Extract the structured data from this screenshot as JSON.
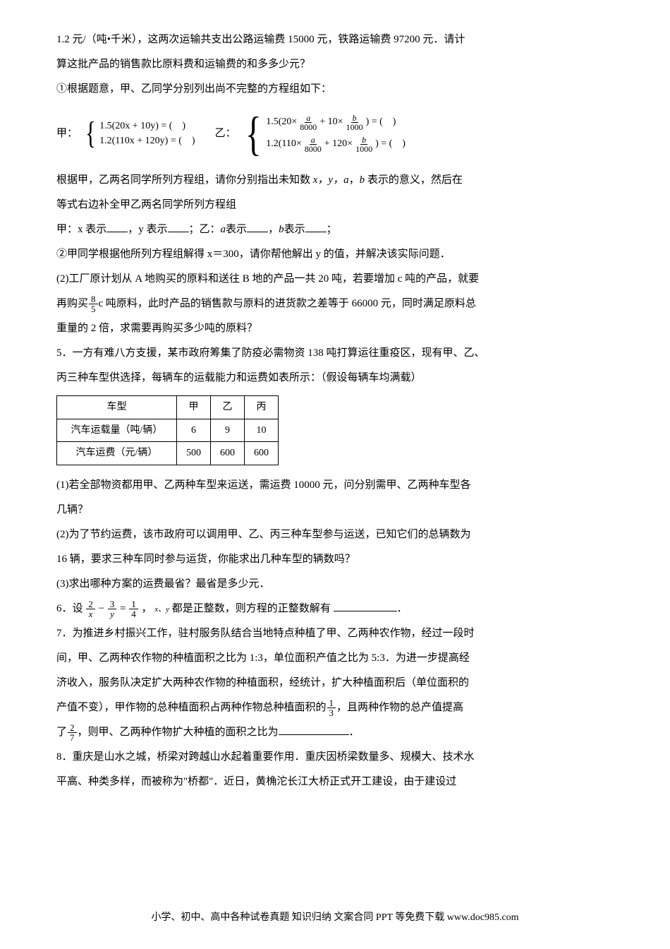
{
  "intro_line1": "1.2 元/（吨•千米），这两次运输共支出公路运输费 15000 元，铁路运输费 97200 元．请计",
  "intro_line2": "算这批产品的销售款比原料费和运输费的和多多少元？",
  "step1": "①根据题意，甲、乙同学分别列出尚不完整的方程组如下：",
  "jia_label": "甲：",
  "yi_label": "乙：",
  "jia_sys_l1": "1.5(20x + 10y) = (　)",
  "jia_sys_l2": "1.2(110x + 120y) = (　)",
  "yi_row1_pre": "1.5(20×",
  "yi_row1_mid": " + 10×",
  "yi_row1_post": ") = (　)",
  "yi_row2_pre": "1.2(110×",
  "yi_row2_mid": " + 120×",
  "yi_row2_post": ") = (　)",
  "frac_a": "a",
  "frac_b": "b",
  "den_8000": "8000",
  "den_1000": "1000",
  "after_eq_l1_a": "根据甲，乙两名同学所列方程组，请你分别指出未知数 ",
  "xy_text": "x，y，",
  "a_text": "a",
  "comma_text": "，",
  "b_text": "b",
  "after_eq_l1_b": " 表示的意义，然后在",
  "after_eq_l2": "等式右边补全甲乙两名同学所列方程组",
  "fill_jia_x": "甲：x 表示",
  "fill_jia_y": "，y 表示",
  "fill_yi_a": "；乙：",
  "a_biao": "表示",
  "fill_yi_b": "，",
  "b_biao": "表示",
  "fill_end": "；",
  "step2": "②甲同学根据他所列方程组解得 x＝300，请你帮他解出 y 的值，并解决该实际问题．",
  "q2_l1": "(2)工厂原计划从 A 地购买的原料和送往 B 地的产品一共 20 吨，若要增加 c 吨的产品，就要",
  "q2_l2_pre": "再购买",
  "q2_frac_n": "8",
  "q2_frac_d": "5",
  "q2_l2_post": "c 吨原料，此时产品的销售款与原料的进货款之差等于 66000 元，同时满足原料总",
  "q2_l3": "重量的 2 倍，求需要再购买多少吨的原料？",
  "q5_l1": "5．一方有难八方支援，某市政府筹集了防疫必需物资 138 吨打算运往重疫区，现有甲、乙、",
  "q5_l2": "丙三种车型供选择，每辆车的运载能力和运费如表所示：（假设每辆车均满载）",
  "table": {
    "header": [
      "车型",
      "甲",
      "乙",
      "丙"
    ],
    "rows": [
      [
        "汽车运载量（吨/辆）",
        "6",
        "9",
        "10"
      ],
      [
        "汽车运费（元/辆）",
        "500",
        "600",
        "600"
      ]
    ]
  },
  "q5_1_l1": "(1)若全部物资都用甲、乙两种车型来运送，需运费 10000 元，问分别需甲、乙两种车型各",
  "q5_1_l2": "几辆？",
  "q5_2_l1": "(2)为了节约运费，该市政府可以调用甲、乙、丙三种车型参与运送，已知它们的总辆数为",
  "q5_2_l2": "16 辆，要求三种车同时参与运货，你能求出几种车型的辆数吗？",
  "q5_3": "(3)求出哪种方案的运费最省？最省是多少元．",
  "q6_pre": "6．设",
  "q6_f1n": "2",
  "q6_f1d": "x",
  "q6_minus": "−",
  "q6_f2n": "3",
  "q6_f2d": "y",
  "q6_eq": "=",
  "q6_f3n": "1",
  "q6_f3d": "4",
  "q6_mid": "，",
  "q6_xy": "x、y",
  "q6_post": "都是正整数，则方程的正整数解有  ",
  "q6_end": "．",
  "q7_l1": "7．为推进乡村振兴工作，驻村服务队结合当地特点种植了甲、乙两种农作物，经过一段时",
  "q7_l2": "间，甲、乙两种农作物的种植面积之比为 1:3，单位面积产值之比为 5:3．为进一步提高经",
  "q7_l3": "济收入，服务队决定扩大两种农作物的种植面积，经统计，扩大种植面积后（单位面积的",
  "q7_l4_pre": "产值不变），甲作物的总种植面积占两种作物总种植面积的",
  "q7_f1n": "1",
  "q7_f1d": "3",
  "q7_l4_post": "，且两种作物的总产值提高",
  "q7_l5_pre": "了",
  "q7_f2n": "2",
  "q7_f2d": "7",
  "q7_l5_post": "，则甲、乙两种作物扩大种植的面积之比为",
  "q7_l5_end": "．",
  "q8_l1": "8．重庆是山水之城，桥梁对跨越山水起着重要作用．重庆因桥梁数量多、规模大、技术水",
  "q8_l2": "平高、种类多样，而被称为\"桥都\"．近日，黄桷沱长江大桥正式开工建设，由于建设过",
  "footer": "小学、初中、高中各种试卷真题  知识归纳  文案合同  PPT 等免费下载    www.doc985.com"
}
